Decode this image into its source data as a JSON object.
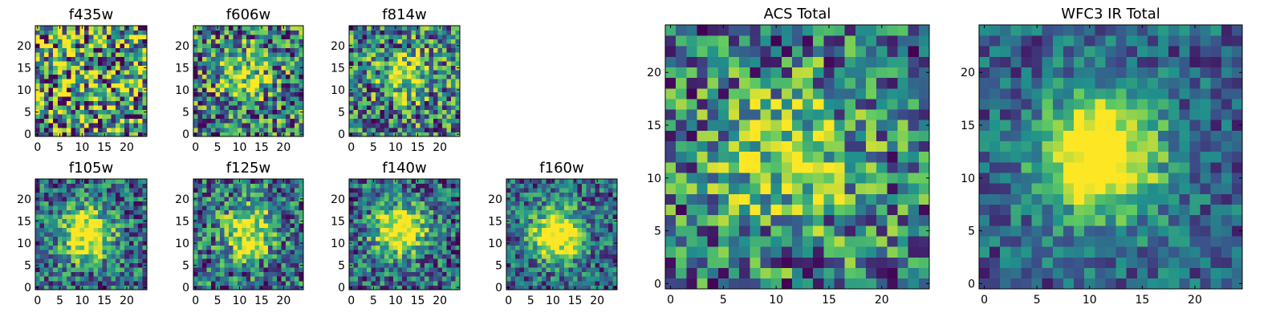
{
  "figure": {
    "colormap": "viridis",
    "colormap_stops": [
      "#440154",
      "#3b528b",
      "#21918c",
      "#5ec962",
      "#fde725"
    ]
  },
  "chart_data": [
    {
      "type": "heatmap",
      "title": "f435w",
      "grid_size": 25,
      "xlim": [
        -0.5,
        24.5
      ],
      "ylim": [
        -0.5,
        24.5
      ],
      "x_ticks": [
        0,
        5,
        10,
        15,
        20
      ],
      "y_ticks": [
        0,
        5,
        10,
        15,
        20
      ],
      "source_center": [
        12,
        12
      ],
      "peak_strength": 0.05,
      "noise_level": 0.8,
      "seed": 11
    },
    {
      "type": "heatmap",
      "title": "f606w",
      "grid_size": 25,
      "xlim": [
        -0.5,
        24.5
      ],
      "ylim": [
        -0.5,
        24.5
      ],
      "x_ticks": [
        0,
        5,
        10,
        15,
        20
      ],
      "y_ticks": [
        0,
        5,
        10,
        15,
        20
      ],
      "source_center": [
        11,
        13
      ],
      "peak_strength": 0.45,
      "noise_level": 0.6,
      "seed": 22
    },
    {
      "type": "heatmap",
      "title": "f814w",
      "grid_size": 25,
      "xlim": [
        -0.5,
        24.5
      ],
      "ylim": [
        -0.5,
        24.5
      ],
      "x_ticks": [
        0,
        5,
        10,
        15,
        20
      ],
      "y_ticks": [
        0,
        5,
        10,
        15,
        20
      ],
      "source_center": [
        12,
        13
      ],
      "peak_strength": 0.45,
      "noise_level": 0.6,
      "seed": 33
    },
    {
      "type": "heatmap",
      "title": "f105w",
      "grid_size": 25,
      "xlim": [
        -0.5,
        24.5
      ],
      "ylim": [
        -0.5,
        24.5
      ],
      "x_ticks": [
        0,
        5,
        10,
        15,
        20
      ],
      "y_ticks": [
        0,
        5,
        10,
        15,
        20
      ],
      "source_center": [
        11,
        12
      ],
      "peak_strength": 0.8,
      "noise_level": 0.45,
      "seed": 44
    },
    {
      "type": "heatmap",
      "title": "f125w",
      "grid_size": 25,
      "xlim": [
        -0.5,
        24.5
      ],
      "ylim": [
        -0.5,
        24.5
      ],
      "x_ticks": [
        0,
        5,
        10,
        15,
        20
      ],
      "y_ticks": [
        0,
        5,
        10,
        15,
        20
      ],
      "source_center": [
        12,
        13
      ],
      "peak_strength": 0.7,
      "noise_level": 0.5,
      "seed": 55
    },
    {
      "type": "heatmap",
      "title": "f140w",
      "grid_size": 25,
      "xlim": [
        -0.5,
        24.5
      ],
      "ylim": [
        -0.5,
        24.5
      ],
      "x_ticks": [
        0,
        5,
        10,
        15,
        20
      ],
      "y_ticks": [
        0,
        5,
        10,
        15,
        20
      ],
      "source_center": [
        11,
        13
      ],
      "peak_strength": 0.8,
      "noise_level": 0.45,
      "seed": 66
    },
    {
      "type": "heatmap",
      "title": "f160w",
      "grid_size": 25,
      "xlim": [
        -0.5,
        24.5
      ],
      "ylim": [
        -0.5,
        24.5
      ],
      "x_ticks": [
        0,
        5,
        10,
        15,
        20
      ],
      "y_ticks": [
        0,
        5,
        10,
        15,
        20
      ],
      "source_center": [
        11,
        12
      ],
      "peak_strength": 0.9,
      "noise_level": 0.4,
      "seed": 77
    },
    {
      "type": "heatmap",
      "title": "ACS Total",
      "grid_size": 25,
      "xlim": [
        -0.5,
        24.5
      ],
      "ylim": [
        -0.5,
        24.5
      ],
      "x_ticks": [
        0,
        5,
        10,
        15,
        20
      ],
      "y_ticks": [
        0,
        5,
        10,
        15,
        20
      ],
      "source_center": [
        11,
        12
      ],
      "peak_strength": 0.5,
      "noise_level": 0.55,
      "seed": 88
    },
    {
      "type": "heatmap",
      "title": "WFC3 IR Total",
      "grid_size": 25,
      "xlim": [
        -0.5,
        24.5
      ],
      "ylim": [
        -0.5,
        24.5
      ],
      "x_ticks": [
        0,
        5,
        10,
        15,
        20
      ],
      "y_ticks": [
        0,
        5,
        10,
        15,
        20
      ],
      "source_center": [
        11,
        12
      ],
      "peak_strength": 0.95,
      "noise_level": 0.3,
      "seed": 99
    }
  ]
}
